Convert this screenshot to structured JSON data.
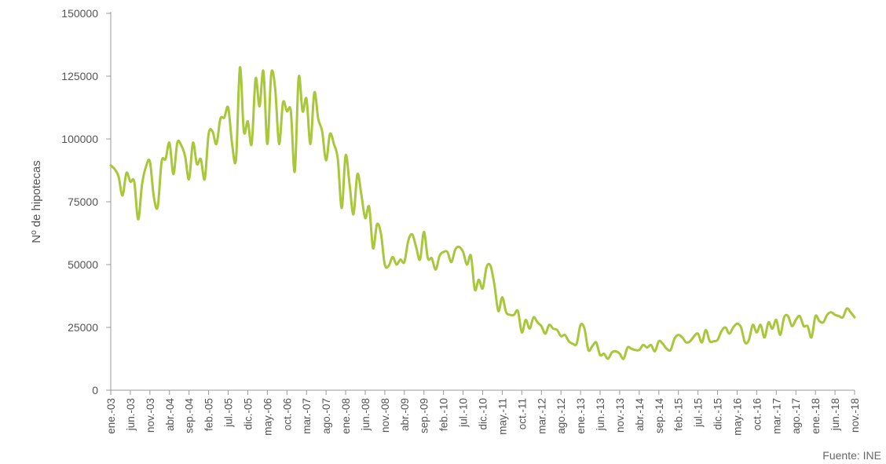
{
  "chart_data": {
    "type": "line",
    "title": "",
    "xlabel": "",
    "ylabel": "Nº de hipotecas",
    "ylim": [
      0,
      150000
    ],
    "yticks": [
      0,
      25000,
      50000,
      75000,
      100000,
      125000,
      150000
    ],
    "ytick_labels": [
      "0",
      "25000",
      "50000",
      "75000",
      "100000",
      "125000",
      "150000"
    ],
    "xtick_labels": [
      "ene.-03",
      "jun.-03",
      "nov.-03",
      "abr.-04",
      "sep.-04",
      "feb.-05",
      "jul.-05",
      "dic.-05",
      "may.-06",
      "oct.-06",
      "mar.-07",
      "ago.-07",
      "ene.-08",
      "jun.-08",
      "nov.-08",
      "abr.-09",
      "sep.-09",
      "feb.-10",
      "jul.-10",
      "dic.-10",
      "may.-11",
      "oct.-11",
      "mar.-12",
      "ago.-12",
      "ene.-13",
      "jun.-13",
      "nov.-13",
      "abr.-14",
      "sep.-14",
      "feb.-15",
      "jul.-15",
      "dic.-15",
      "may.-16",
      "oct.-16",
      "mar.-17",
      "ago.-17",
      "ene.-18",
      "jun.-18",
      "nov.-18"
    ],
    "grid": false,
    "series": [
      {
        "color": "#a8c73a",
        "values": [
          89500,
          88000,
          85000,
          77500,
          86500,
          83000,
          83000,
          68000,
          82000,
          89000,
          91000,
          77000,
          73000,
          91000,
          92000,
          98500,
          86000,
          98500,
          97500,
          93000,
          84000,
          98500,
          90000,
          92000,
          84000,
          102000,
          103000,
          98000,
          108000,
          108500,
          112500,
          98000,
          92000,
          128500,
          103000,
          107000,
          98000,
          124000,
          113000,
          127000,
          98000,
          126000,
          120000,
          98000,
          114500,
          111000,
          111000,
          87000,
          124500,
          111000,
          116000,
          98000,
          118500,
          108000,
          103000,
          91500,
          102000,
          98000,
          92000,
          72500,
          93500,
          82000,
          70000,
          86000,
          78000,
          68500,
          73000,
          56500,
          66000,
          62500,
          50000,
          49500,
          53000,
          50000,
          52000,
          51000,
          59500,
          62000,
          57000,
          52000,
          63000,
          52500,
          52500,
          48000,
          53500,
          55000,
          55000,
          51000,
          56000,
          57000,
          55000,
          50000,
          53500,
          40000,
          44000,
          40500,
          49000,
          49500,
          42000,
          31500,
          37000,
          31000,
          30000,
          30000,
          31500,
          23000,
          28000,
          24500,
          29000,
          27000,
          25500,
          22500,
          26000,
          24500,
          24000,
          21500,
          22000,
          19500,
          18500,
          18500,
          26000,
          24500,
          16000,
          17500,
          19000,
          14000,
          14500,
          12500,
          15000,
          15500,
          14500,
          12500,
          17000,
          16500,
          16000,
          16000,
          18000,
          17000,
          18000,
          15500,
          19500,
          18500,
          16500,
          16000,
          20500,
          22000,
          21000,
          19000,
          19500,
          21500,
          22500,
          19000,
          24000,
          19500,
          19500,
          20000,
          23500,
          25000,
          22500,
          25000,
          26500,
          25000,
          19000,
          20000,
          26000,
          23000,
          26000,
          21000,
          27000,
          24500,
          28000,
          22000,
          29000,
          29500,
          25500,
          28000,
          29500,
          25500,
          25500,
          21000,
          29500,
          27500,
          27000,
          30000,
          31000,
          30000,
          29500,
          29000,
          32500,
          31000,
          29000
        ]
      }
    ],
    "source": "Fuente: INE"
  }
}
